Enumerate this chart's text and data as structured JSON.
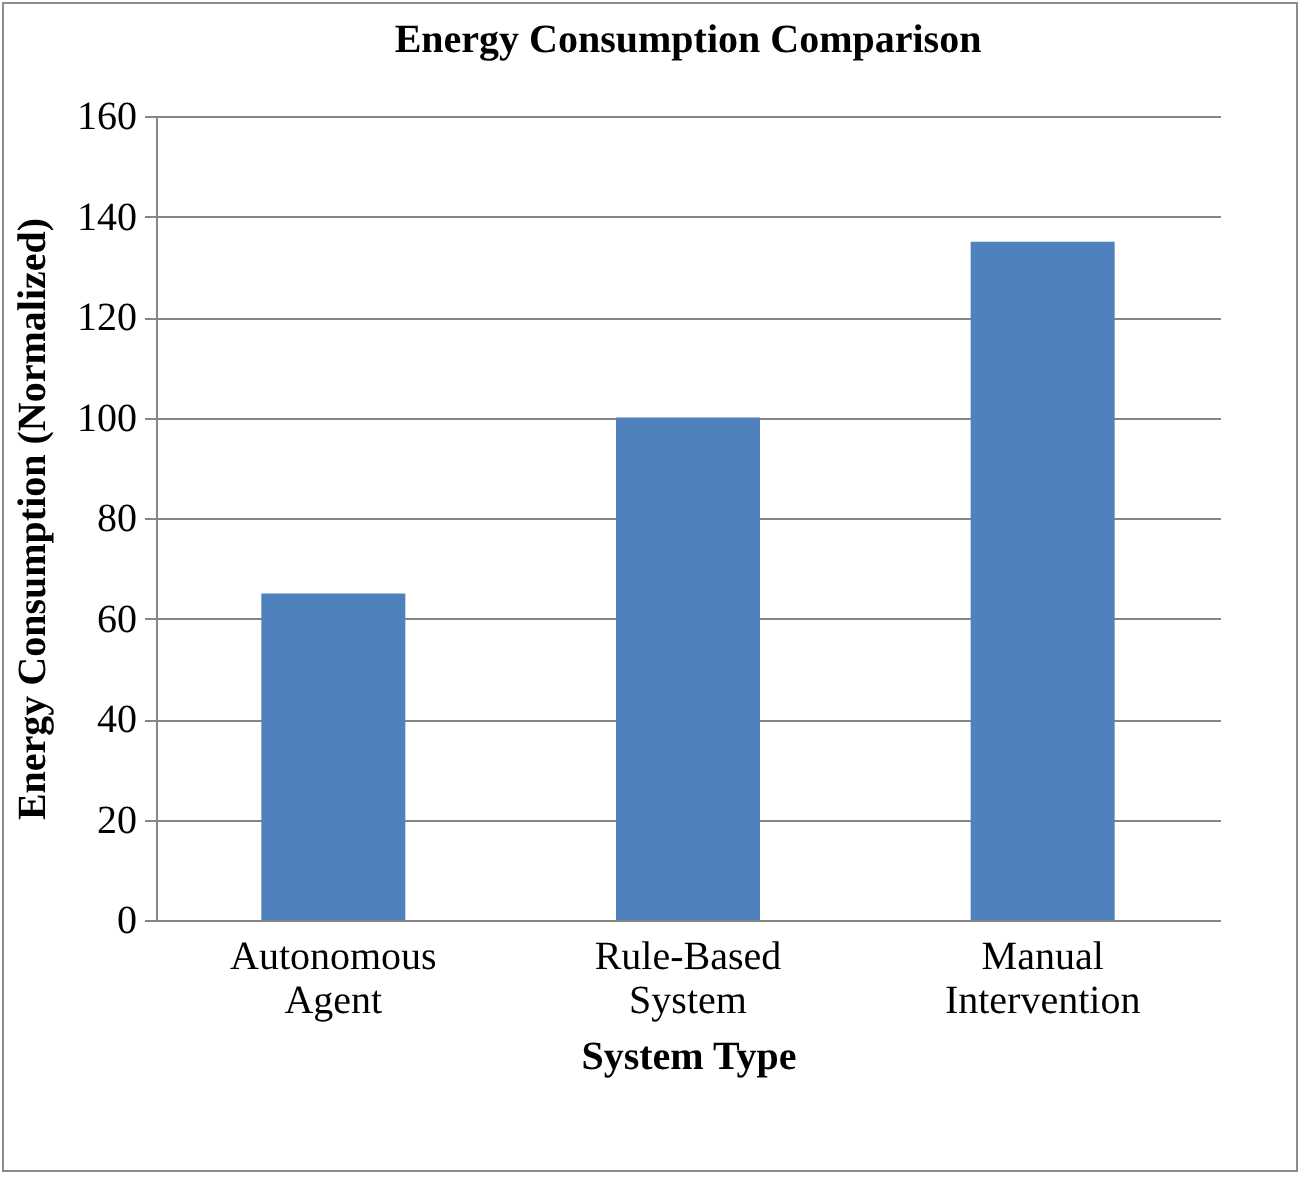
{
  "chart_data": {
    "type": "bar",
    "title": "Energy Consumption Comparison",
    "xlabel": "System Type",
    "ylabel": "Energy Consumption (Normalized)",
    "categories": [
      "Autonomous Agent",
      "Rule-Based System",
      "Manual Intervention"
    ],
    "values": [
      65,
      100,
      135
    ],
    "color": "#4f81bd",
    "ylim": [
      0,
      160
    ],
    "yticks": [
      0,
      20,
      40,
      60,
      80,
      100,
      120,
      140,
      160
    ],
    "grid": "y"
  }
}
